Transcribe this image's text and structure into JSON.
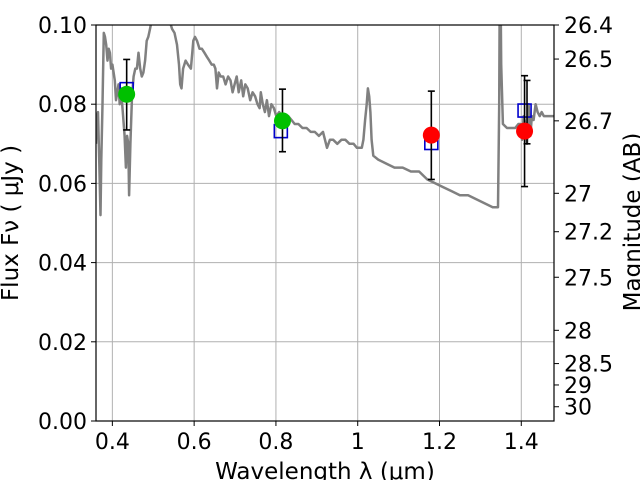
{
  "chart_data": {
    "type": "scatter",
    "title": "",
    "xlabel": "Wavelength  λ (μm)",
    "ylabel": "Flux  Fν  ( μJy )",
    "ylabel_right": "Magnitude (AB)",
    "xlim": [
      0.36,
      1.48
    ],
    "ylim": [
      0.0,
      0.1
    ],
    "grid": true,
    "x_ticks": [
      0.4,
      0.6,
      0.8,
      1.0,
      1.2,
      1.4
    ],
    "x_tick_labels": [
      "0.4",
      "0.6",
      "0.8",
      "1",
      "1.2",
      "1.4"
    ],
    "y_ticks": [
      0.0,
      0.02,
      0.04,
      0.06,
      0.08,
      0.1
    ],
    "y_tick_labels": [
      "0.00",
      "0.02",
      "0.04",
      "0.06",
      "0.08",
      "0.10"
    ],
    "right_ticks": [
      {
        "label": "26.4",
        "flux": 0.1
      },
      {
        "label": "26.5",
        "flux": 0.0914
      },
      {
        "label": "26.7",
        "flux": 0.0758
      },
      {
        "label": "27",
        "flux": 0.0575
      },
      {
        "label": "27.2",
        "flux": 0.0478
      },
      {
        "label": "27.5",
        "flux": 0.0363
      },
      {
        "label": "28",
        "flux": 0.0229
      },
      {
        "label": "28.5",
        "flux": 0.0145
      },
      {
        "label": "29",
        "flux": 0.0091
      },
      {
        "label": "30",
        "flux": 0.0036
      }
    ],
    "colors": {
      "model": "#808080",
      "green": "#00c000",
      "red": "#ff0000",
      "box": "#0000cc",
      "grid": "#b0b0b0"
    },
    "series": [
      {
        "type": "line",
        "points": [
          [
            0.36,
            0.07
          ],
          [
            0.362,
            0.076
          ],
          [
            0.365,
            0.078
          ],
          [
            0.368,
            0.065
          ],
          [
            0.371,
            0.052
          ],
          [
            0.373,
            0.066
          ],
          [
            0.376,
            0.08
          ],
          [
            0.379,
            0.098
          ],
          [
            0.382,
            0.097
          ],
          [
            0.385,
            0.095
          ],
          [
            0.388,
            0.091
          ],
          [
            0.391,
            0.094
          ],
          [
            0.394,
            0.093
          ],
          [
            0.397,
            0.089
          ],
          [
            0.4,
            0.09
          ],
          [
            0.403,
            0.088
          ],
          [
            0.406,
            0.086
          ],
          [
            0.409,
            0.081
          ],
          [
            0.412,
            0.083
          ],
          [
            0.415,
            0.085
          ],
          [
            0.418,
            0.08
          ],
          [
            0.421,
            0.084
          ],
          [
            0.424,
            0.08
          ],
          [
            0.427,
            0.076
          ],
          [
            0.43,
            0.072
          ],
          [
            0.433,
            0.064
          ],
          [
            0.436,
            0.072
          ],
          [
            0.439,
            0.07
          ],
          [
            0.441,
            0.057
          ],
          [
            0.444,
            0.07
          ],
          [
            0.448,
            0.082
          ],
          [
            0.452,
            0.087
          ],
          [
            0.456,
            0.089
          ],
          [
            0.46,
            0.089
          ],
          [
            0.464,
            0.093
          ],
          [
            0.468,
            0.089
          ],
          [
            0.472,
            0.087
          ],
          [
            0.476,
            0.088
          ],
          [
            0.48,
            0.091
          ],
          [
            0.484,
            0.096
          ],
          [
            0.488,
            0.097
          ],
          [
            0.492,
            0.099
          ],
          [
            0.496,
            0.101
          ],
          [
            0.5,
            0.101
          ],
          [
            0.503,
            0.102
          ],
          [
            0.506,
            0.108
          ],
          [
            0.51,
            0.112
          ],
          [
            0.515,
            0.103
          ],
          [
            0.519,
            0.105
          ],
          [
            0.522,
            0.11
          ],
          [
            0.526,
            0.103
          ],
          [
            0.53,
            0.101
          ],
          [
            0.535,
            0.102
          ],
          [
            0.54,
            0.101
          ],
          [
            0.546,
            0.099
          ],
          [
            0.552,
            0.098
          ],
          [
            0.558,
            0.095
          ],
          [
            0.563,
            0.09
          ],
          [
            0.566,
            0.085
          ],
          [
            0.569,
            0.084
          ],
          [
            0.573,
            0.089
          ],
          [
            0.579,
            0.091
          ],
          [
            0.585,
            0.09
          ],
          [
            0.592,
            0.089
          ],
          [
            0.598,
            0.096
          ],
          [
            0.602,
            0.097
          ],
          [
            0.607,
            0.096
          ],
          [
            0.613,
            0.094
          ],
          [
            0.619,
            0.094
          ],
          [
            0.625,
            0.093
          ],
          [
            0.631,
            0.092
          ],
          [
            0.637,
            0.091
          ],
          [
            0.643,
            0.09
          ],
          [
            0.648,
            0.09
          ],
          [
            0.652,
            0.089
          ],
          [
            0.656,
            0.084
          ],
          [
            0.66,
            0.088
          ],
          [
            0.665,
            0.087
          ],
          [
            0.671,
            0.087
          ],
          [
            0.677,
            0.085
          ],
          [
            0.683,
            0.087
          ],
          [
            0.689,
            0.086
          ],
          [
            0.694,
            0.083
          ],
          [
            0.699,
            0.085
          ],
          [
            0.704,
            0.087
          ],
          [
            0.709,
            0.083
          ],
          [
            0.715,
            0.086
          ],
          [
            0.72,
            0.082
          ],
          [
            0.725,
            0.085
          ],
          [
            0.731,
            0.084
          ],
          [
            0.737,
            0.081
          ],
          [
            0.743,
            0.083
          ],
          [
            0.749,
            0.082
          ],
          [
            0.755,
            0.08
          ],
          [
            0.76,
            0.079
          ],
          [
            0.763,
            0.083
          ],
          [
            0.768,
            0.08
          ],
          [
            0.773,
            0.078
          ],
          [
            0.778,
            0.081
          ],
          [
            0.783,
            0.077
          ],
          [
            0.789,
            0.08
          ],
          [
            0.795,
            0.079
          ],
          [
            0.801,
            0.077
          ],
          [
            0.808,
            0.078
          ],
          [
            0.815,
            0.077
          ],
          [
            0.823,
            0.076
          ],
          [
            0.83,
            0.077
          ],
          [
            0.838,
            0.076
          ],
          [
            0.846,
            0.075
          ],
          [
            0.855,
            0.075
          ],
          [
            0.865,
            0.074
          ],
          [
            0.875,
            0.074
          ],
          [
            0.885,
            0.073
          ],
          [
            0.895,
            0.073
          ],
          [
            0.905,
            0.072
          ],
          [
            0.915,
            0.073
          ],
          [
            0.925,
            0.069
          ],
          [
            0.932,
            0.071
          ],
          [
            0.94,
            0.071
          ],
          [
            0.95,
            0.07
          ],
          [
            0.96,
            0.071
          ],
          [
            0.97,
            0.071
          ],
          [
            0.98,
            0.07
          ],
          [
            0.99,
            0.07
          ],
          [
            0.998,
            0.069
          ],
          [
            1.005,
            0.069
          ],
          [
            1.01,
            0.069
          ],
          [
            1.014,
            0.071
          ],
          [
            1.018,
            0.076
          ],
          [
            1.022,
            0.08
          ],
          [
            1.025,
            0.084
          ],
          [
            1.028,
            0.082
          ],
          [
            1.031,
            0.078
          ],
          [
            1.034,
            0.071
          ],
          [
            1.038,
            0.067
          ],
          [
            1.05,
            0.066
          ],
          [
            1.07,
            0.065
          ],
          [
            1.09,
            0.064
          ],
          [
            1.11,
            0.064
          ],
          [
            1.13,
            0.063
          ],
          [
            1.15,
            0.063
          ],
          [
            1.17,
            0.061
          ],
          [
            1.19,
            0.06
          ],
          [
            1.21,
            0.059
          ],
          [
            1.23,
            0.058
          ],
          [
            1.25,
            0.057
          ],
          [
            1.27,
            0.057
          ],
          [
            1.29,
            0.056
          ],
          [
            1.31,
            0.055
          ],
          [
            1.33,
            0.054
          ],
          [
            1.343,
            0.054
          ],
          [
            1.346,
            0.08
          ],
          [
            1.347,
            0.102
          ],
          [
            1.35,
            0.102
          ],
          [
            1.351,
            0.09
          ],
          [
            1.355,
            0.075
          ],
          [
            1.365,
            0.074
          ],
          [
            1.375,
            0.074
          ],
          [
            1.385,
            0.074
          ],
          [
            1.393,
            0.075
          ],
          [
            1.398,
            0.075
          ],
          [
            1.402,
            0.071
          ],
          [
            1.406,
            0.077
          ],
          [
            1.41,
            0.075
          ],
          [
            1.414,
            0.07
          ],
          [
            1.418,
            0.08
          ],
          [
            1.422,
            0.072
          ],
          [
            1.426,
            0.077
          ],
          [
            1.43,
            0.076
          ],
          [
            1.435,
            0.08
          ],
          [
            1.44,
            0.078
          ],
          [
            1.445,
            0.077
          ],
          [
            1.45,
            0.078
          ],
          [
            1.455,
            0.077
          ],
          [
            1.46,
            0.077
          ],
          [
            1.47,
            0.077
          ],
          [
            1.48,
            0.077
          ]
        ]
      }
    ],
    "box_points": [
      {
        "x": 0.435,
        "y": 0.0838
      },
      {
        "x": 0.812,
        "y": 0.0732
      },
      {
        "x": 1.18,
        "y": 0.0702
      },
      {
        "x": 1.408,
        "y": 0.0784
      }
    ],
    "circle_points": [
      {
        "x": 0.435,
        "y": 0.0825,
        "yerr": [
          0.0735,
          0.0913
        ],
        "color": "green"
      },
      {
        "x": 0.816,
        "y": 0.0758,
        "yerr": [
          0.068,
          0.0838
        ],
        "color": "green"
      },
      {
        "x": 1.18,
        "y": 0.0722,
        "yerr": [
          0.061,
          0.0833
        ],
        "color": "red"
      },
      {
        "x": 1.408,
        "y": 0.0732,
        "yerr": [
          0.0592,
          0.0872
        ],
        "color": "red"
      }
    ],
    "tall_errorbars": [
      {
        "x": 1.414,
        "yerr": [
          0.07,
          0.086
        ]
      }
    ]
  }
}
